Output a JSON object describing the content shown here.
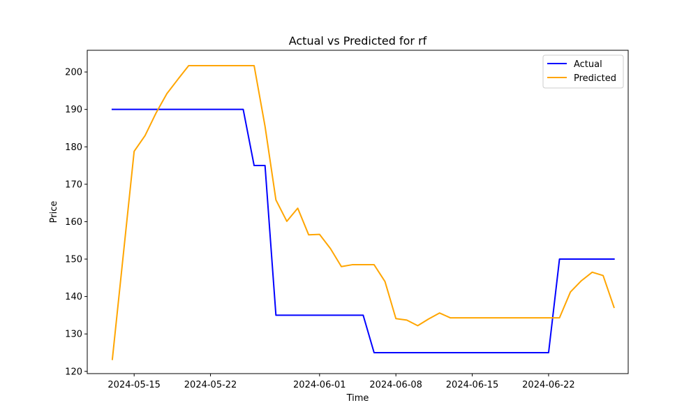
{
  "chart_data": {
    "type": "line",
    "title": "Actual vs Predicted for rf",
    "xlabel": "Time",
    "ylabel": "Price",
    "ylim": [
      119.4,
      205.8
    ],
    "xlim": [
      "2024-05-10T16:48",
      "2024-06-29T07:12"
    ],
    "yticks": [
      120,
      130,
      140,
      150,
      160,
      170,
      180,
      190,
      200
    ],
    "xticks": [
      "2024-05-15",
      "2024-05-22",
      "2024-06-01",
      "2024-06-08",
      "2024-06-15",
      "2024-06-22"
    ],
    "grid": false,
    "legend_position": "top-right",
    "series": [
      {
        "name": "Actual",
        "color": "#0000ff",
        "points": [
          [
            "2024-05-13",
            190
          ],
          [
            "2024-05-14",
            190
          ],
          [
            "2024-05-15",
            190
          ],
          [
            "2024-05-16",
            190
          ],
          [
            "2024-05-17",
            190
          ],
          [
            "2024-05-20",
            190
          ],
          [
            "2024-05-21",
            190
          ],
          [
            "2024-05-22",
            190
          ],
          [
            "2024-05-23",
            190
          ],
          [
            "2024-05-24",
            190
          ],
          [
            "2024-05-25",
            190
          ],
          [
            "2024-05-26",
            175
          ],
          [
            "2024-05-27",
            175
          ],
          [
            "2024-05-28",
            135
          ],
          [
            "2024-05-29",
            135
          ],
          [
            "2024-05-30",
            135
          ],
          [
            "2024-05-31",
            135
          ],
          [
            "2024-06-03",
            135
          ],
          [
            "2024-06-04",
            135
          ],
          [
            "2024-06-05",
            135
          ],
          [
            "2024-06-06",
            125
          ],
          [
            "2024-06-07",
            125
          ],
          [
            "2024-06-08",
            125
          ],
          [
            "2024-06-10",
            125
          ],
          [
            "2024-06-11",
            125
          ],
          [
            "2024-06-12",
            125
          ],
          [
            "2024-06-13",
            125
          ],
          [
            "2024-06-14",
            125
          ],
          [
            "2024-06-17",
            125
          ],
          [
            "2024-06-18",
            125
          ],
          [
            "2024-06-19",
            125
          ],
          [
            "2024-06-20",
            125
          ],
          [
            "2024-06-21",
            125
          ],
          [
            "2024-06-22",
            125
          ],
          [
            "2024-06-23",
            150
          ],
          [
            "2024-06-24",
            150
          ],
          [
            "2024-06-25",
            150
          ],
          [
            "2024-06-26",
            150
          ],
          [
            "2024-06-27",
            150
          ],
          [
            "2024-06-28",
            150
          ]
        ]
      },
      {
        "name": "Predicted",
        "color": "#ffa500",
        "points": [
          [
            "2024-05-13",
            123.2
          ],
          [
            "2024-05-15",
            178.8
          ],
          [
            "2024-05-16",
            183.0
          ],
          [
            "2024-05-17",
            189.0
          ],
          [
            "2024-05-18",
            194.2
          ],
          [
            "2024-05-19",
            198.0
          ],
          [
            "2024-05-20",
            201.7
          ],
          [
            "2024-05-21",
            201.7
          ],
          [
            "2024-05-22",
            201.7
          ],
          [
            "2024-05-23",
            201.7
          ],
          [
            "2024-05-24",
            201.7
          ],
          [
            "2024-05-25",
            201.7
          ],
          [
            "2024-05-26",
            201.7
          ],
          [
            "2024-05-27",
            185.5
          ],
          [
            "2024-05-28",
            165.8
          ],
          [
            "2024-05-29",
            160.1
          ],
          [
            "2024-05-30",
            163.6
          ],
          [
            "2024-05-31",
            156.5
          ],
          [
            "2024-06-01",
            156.6
          ],
          [
            "2024-06-02",
            152.8
          ],
          [
            "2024-06-03",
            148.0
          ],
          [
            "2024-06-04",
            148.5
          ],
          [
            "2024-06-05",
            148.5
          ],
          [
            "2024-06-06",
            148.5
          ],
          [
            "2024-06-07",
            144.0
          ],
          [
            "2024-06-08",
            134.1
          ],
          [
            "2024-06-09",
            133.7
          ],
          [
            "2024-06-10",
            132.2
          ],
          [
            "2024-06-11",
            134.0
          ],
          [
            "2024-06-12",
            135.6
          ],
          [
            "2024-06-13",
            134.3
          ],
          [
            "2024-06-14",
            134.3
          ],
          [
            "2024-06-17",
            134.3
          ],
          [
            "2024-06-18",
            134.3
          ],
          [
            "2024-06-19",
            134.3
          ],
          [
            "2024-06-20",
            134.3
          ],
          [
            "2024-06-21",
            134.3
          ],
          [
            "2024-06-22",
            134.3
          ],
          [
            "2024-06-23",
            134.3
          ],
          [
            "2024-06-24",
            141.2
          ],
          [
            "2024-06-25",
            144.2
          ],
          [
            "2024-06-26",
            146.5
          ],
          [
            "2024-06-27",
            145.6
          ],
          [
            "2024-06-28",
            137.1
          ]
        ]
      }
    ]
  }
}
